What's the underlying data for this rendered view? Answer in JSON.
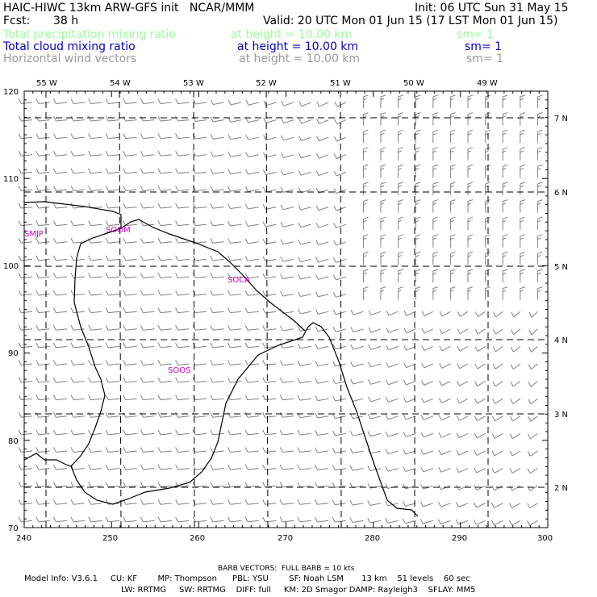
{
  "header": {
    "title": "HAIC-HIWC 13km ARW-GFS init   NCAR/MMM",
    "init": "Init: 06 UTC Sun 31 May 15",
    "fcst_label": "Fcst:",
    "fcst_value": "38 h",
    "valid": "Valid: 20 UTC Mon 01 Jun 15 (17 LST Mon 01 Jun 15)",
    "fields": [
      {
        "name": "Total precipitation mixing ratio",
        "level": "at height = 10.00 km",
        "smooth": "sm= 1",
        "color": "#99ff99"
      },
      {
        "name": "Total cloud mixing ratio",
        "level": "at height = 10.00 km",
        "smooth": "sm= 1",
        "color": "#0000cc"
      },
      {
        "name": "Horizontal wind vectors",
        "level": "at height = 10.00 km",
        "smooth": "sm= 1",
        "color": "#999999"
      }
    ]
  },
  "map": {
    "top_lon_labels": [
      "55 W",
      "54 W",
      "53 W",
      "52 W",
      "51 W",
      "50 W",
      "49 W"
    ],
    "right_lat_labels": [
      "7 N",
      "6 N",
      "5 N",
      "4 N",
      "3 N",
      "2 N"
    ],
    "y_ticks": [
      "120",
      "110",
      "100",
      "90",
      "80",
      "70"
    ],
    "x_ticks": [
      "240",
      "250",
      "260",
      "270",
      "280",
      "290",
      "300"
    ],
    "stations": [
      "SMJP",
      "SOOM",
      "SOCA",
      "SOOS"
    ],
    "station_color": "#cc00cc",
    "coast_color": "#000000",
    "barb_color": "#808080"
  },
  "footer": {
    "barb_note": "BARB VECTORS:  FULL BARB = 10 kts",
    "line1": "Model Info: V3.6.1     CU: KF        MP: Thompson      PBL: YSU        SF: Noah LSM       13 km    51 levels    60 sec",
    "line2": "LW: RRTMG     SW: RRTMG    DIFF: full     KM: 2D Smagor DAMP: Rayleigh3    SFLAY: MM5"
  }
}
